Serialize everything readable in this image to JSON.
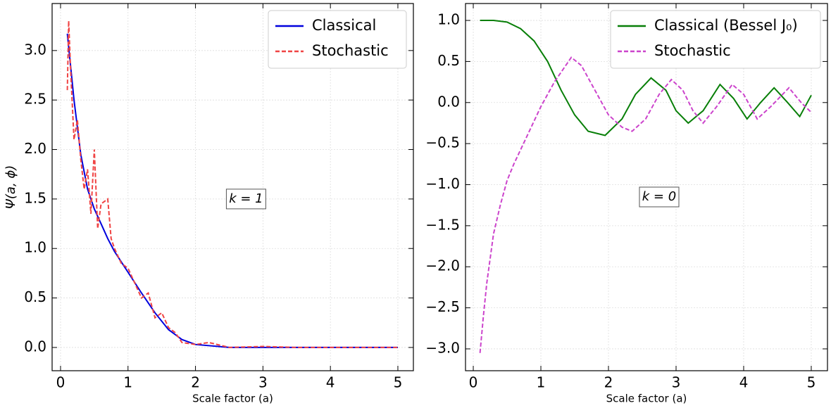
{
  "chart_data": [
    {
      "type": "line",
      "xlabel": "Scale factor (a)",
      "ylabel": "Ψ(a, ϕ)",
      "annotation": "k = 1",
      "annotation_at": [
        2.75,
        1.5
      ],
      "xlim": [
        -0.125,
        5.23
      ],
      "ylim": [
        -0.235,
        3.475
      ],
      "xticks": [
        0,
        1,
        2,
        3,
        4,
        5
      ],
      "yticks": [
        {
          "value": 0,
          "label": "0.0"
        },
        {
          "value": 0.5,
          "label": "0.5"
        },
        {
          "value": 1,
          "label": "1.0"
        },
        {
          "value": 1.5,
          "label": "1.5"
        },
        {
          "value": 2,
          "label": "2.0"
        },
        {
          "value": 2.5,
          "label": "2.5"
        },
        {
          "value": 3,
          "label": "3.0"
        }
      ],
      "grid": true,
      "legend": "upper-right",
      "series": [
        {
          "name": "Classical",
          "color": "#0000dd",
          "dash": "solid",
          "x": [
            0.1,
            0.2,
            0.3,
            0.4,
            0.5,
            0.6,
            0.7,
            0.8,
            1.0,
            1.2,
            1.4,
            1.6,
            1.8,
            2.0,
            2.5,
            3,
            4,
            5
          ],
          "values": [
            3.17,
            2.5,
            1.95,
            1.6,
            1.4,
            1.25,
            1.1,
            0.97,
            0.76,
            0.55,
            0.35,
            0.18,
            0.08,
            0.03,
            0.0,
            0.0,
            0.0,
            0.0
          ]
        },
        {
          "name": "Stochastic",
          "color": "#f04444",
          "dash": "dashed",
          "x": [
            0.1,
            0.12,
            0.15,
            0.2,
            0.25,
            0.3,
            0.35,
            0.4,
            0.45,
            0.5,
            0.55,
            0.6,
            0.7,
            0.75,
            0.8,
            0.9,
            1.0,
            1.1,
            1.2,
            1.3,
            1.4,
            1.5,
            1.6,
            1.7,
            1.8,
            2.0,
            2.2,
            2.5,
            3.0,
            3.5,
            4.0,
            4.5,
            5.0
          ],
          "values": [
            2.6,
            3.3,
            2.8,
            2.1,
            2.3,
            1.9,
            1.6,
            1.8,
            1.35,
            2.0,
            1.2,
            1.45,
            1.5,
            1.1,
            1.0,
            0.85,
            0.8,
            0.65,
            0.5,
            0.55,
            0.3,
            0.35,
            0.2,
            0.15,
            0.05,
            0.03,
            0.05,
            0.0,
            0.01,
            0.0,
            0.0,
            0.0,
            0.0
          ]
        }
      ]
    },
    {
      "type": "line",
      "xlabel": "Scale factor (a)",
      "annotation": "k = 0",
      "annotation_at": [
        2.75,
        -1.15
      ],
      "xlim": [
        -0.115,
        5.24
      ],
      "ylim": [
        -3.266,
        1.206
      ],
      "xticks": [
        0,
        1,
        2,
        3,
        4,
        5
      ],
      "yticks": [
        {
          "value": -3,
          "label": "−3.0"
        },
        {
          "value": -2.5,
          "label": "−2.5"
        },
        {
          "value": -2,
          "label": "−2.0"
        },
        {
          "value": -1.5,
          "label": "−1.5"
        },
        {
          "value": -1,
          "label": "−1.0"
        },
        {
          "value": -0.5,
          "label": "−0.5"
        },
        {
          "value": 0,
          "label": "0.0"
        },
        {
          "value": 0.5,
          "label": "0.5"
        },
        {
          "value": 1,
          "label": "1.0"
        }
      ],
      "grid": true,
      "legend": "upper-right",
      "series": [
        {
          "name": "Classical (Bessel J₀)",
          "color": "#087f08",
          "dash": "solid",
          "x": [
            0.1,
            0.3,
            0.5,
            0.7,
            0.9,
            1.1,
            1.3,
            1.5,
            1.7,
            1.95,
            2.2,
            2.4,
            2.63,
            2.85,
            3.0,
            3.18,
            3.4,
            3.65,
            3.85,
            4.05,
            4.25,
            4.45,
            4.65,
            4.83,
            5.0
          ],
          "values": [
            1.0,
            1.0,
            0.98,
            0.9,
            0.75,
            0.5,
            0.15,
            -0.15,
            -0.35,
            -0.4,
            -0.2,
            0.1,
            0.3,
            0.15,
            -0.1,
            -0.25,
            -0.1,
            0.22,
            0.05,
            -0.2,
            0.0,
            0.18,
            0.0,
            -0.17,
            0.09
          ]
        },
        {
          "name": "Stochastic",
          "color": "#cc44cc",
          "dash": "dashed",
          "x": [
            0.1,
            0.15,
            0.2,
            0.3,
            0.4,
            0.5,
            0.6,
            0.8,
            1.0,
            1.2,
            1.45,
            1.6,
            1.8,
            2.0,
            2.2,
            2.35,
            2.55,
            2.75,
            2.93,
            3.1,
            3.25,
            3.4,
            3.6,
            3.83,
            4.0,
            4.2,
            4.4,
            4.67,
            4.85,
            5.0
          ],
          "values": [
            -3.05,
            -2.6,
            -2.2,
            -1.6,
            -1.25,
            -0.95,
            -0.75,
            -0.4,
            -0.05,
            0.25,
            0.55,
            0.45,
            0.15,
            -0.15,
            -0.3,
            -0.35,
            -0.2,
            0.1,
            0.28,
            0.15,
            -0.1,
            -0.25,
            -0.05,
            0.22,
            0.1,
            -0.2,
            -0.05,
            0.18,
            0.0,
            -0.12
          ]
        }
      ]
    }
  ]
}
